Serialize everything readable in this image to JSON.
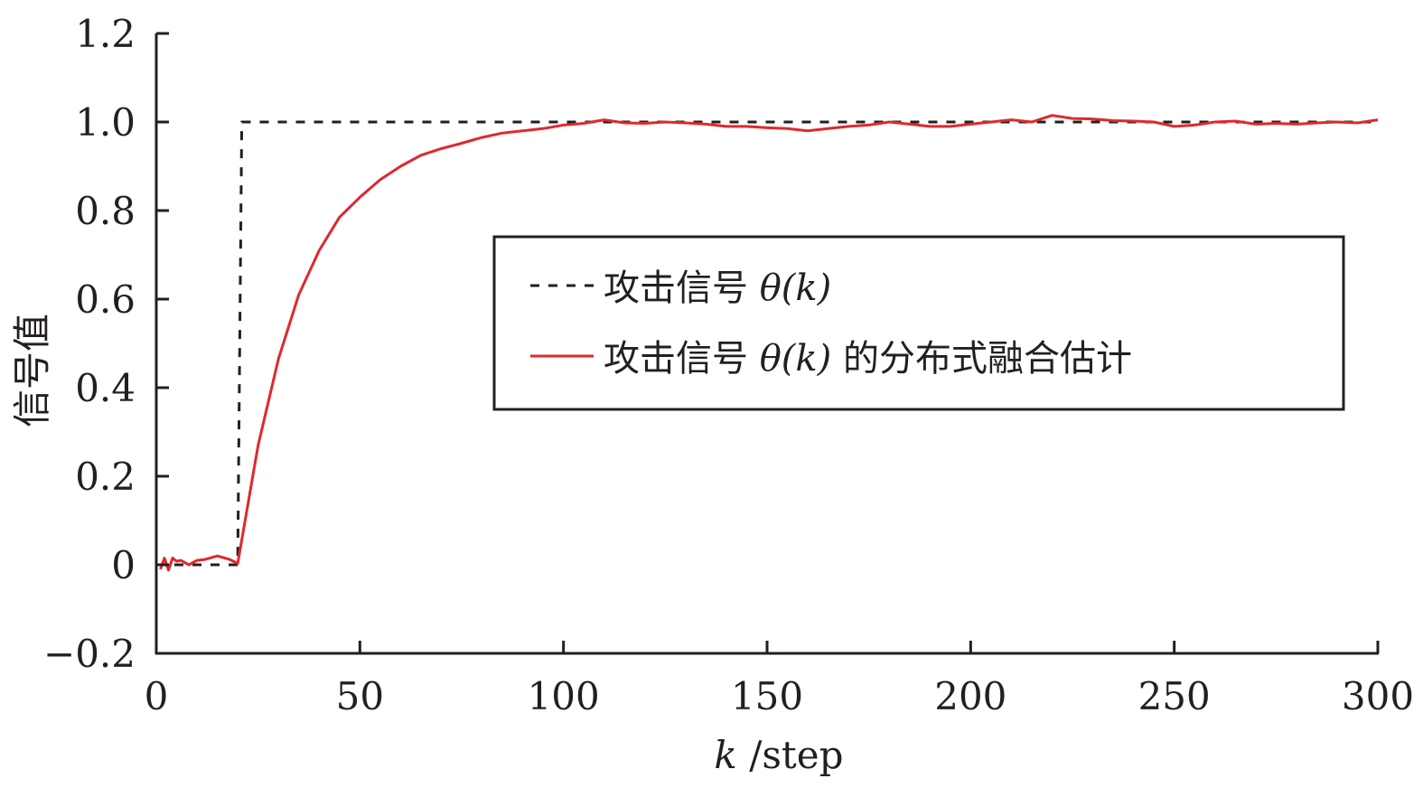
{
  "chart_data": {
    "type": "line",
    "title": "",
    "xlabel": "k /step",
    "xlabel_var": "k",
    "xlabel_unit": " /step",
    "ylabel": "信号值",
    "xlim": [
      0,
      300
    ],
    "ylim": [
      -0.2,
      1.2
    ],
    "xticks": [
      0,
      50,
      100,
      150,
      200,
      250,
      300
    ],
    "xtick_labels": [
      "0",
      "50",
      "100",
      "150",
      "200",
      "250",
      "300"
    ],
    "yticks": [
      -0.2,
      0,
      0.2,
      0.4,
      0.6,
      0.8,
      1.0,
      1.2
    ],
    "ytick_labels": [
      "−0.2",
      "0",
      "0.2",
      "0.4",
      "0.6",
      "0.8",
      "1.0",
      "1.2"
    ],
    "grid": false,
    "legend_position": "center-right",
    "series": [
      {
        "name": "攻击信号 θ(k)",
        "legend_prefix": "攻击信号 ",
        "legend_math": "θ(k)",
        "legend_suffix": "",
        "style": "dashed",
        "color": "#231f20",
        "x": [
          0,
          20,
          21,
          300
        ],
        "y": [
          0,
          0,
          1,
          1
        ]
      },
      {
        "name": "攻击信号 θ(k) 的分布式融合估计",
        "legend_prefix": "攻击信号 ",
        "legend_math": "θ(k)",
        "legend_suffix": " 的分布式融合估计",
        "style": "solid",
        "color": "#e0282e",
        "x": [
          1,
          2,
          3,
          4,
          5,
          6,
          8,
          10,
          12,
          15,
          18,
          20,
          25,
          30,
          35,
          40,
          45,
          50,
          55,
          60,
          65,
          70,
          75,
          80,
          85,
          90,
          95,
          100,
          105,
          110,
          115,
          120,
          125,
          130,
          135,
          140,
          145,
          150,
          155,
          160,
          165,
          170,
          175,
          180,
          185,
          190,
          195,
          200,
          205,
          210,
          215,
          220,
          225,
          230,
          235,
          240,
          245,
          250,
          255,
          260,
          265,
          270,
          275,
          280,
          285,
          290,
          295,
          300
        ],
        "y": [
          -0.01,
          0.015,
          -0.012,
          0.015,
          0.008,
          0.01,
          0.0,
          0.01,
          0.012,
          0.02,
          0.012,
          0.003,
          0.27,
          0.465,
          0.61,
          0.71,
          0.785,
          0.83,
          0.87,
          0.9,
          0.925,
          0.94,
          0.952,
          0.965,
          0.975,
          0.98,
          0.985,
          0.993,
          0.997,
          1.005,
          0.998,
          0.997,
          1.0,
          0.998,
          0.995,
          0.99,
          0.99,
          0.987,
          0.985,
          0.98,
          0.985,
          0.99,
          0.993,
          1.0,
          0.995,
          0.99,
          0.99,
          0.995,
          1.0,
          1.005,
          1.0,
          1.015,
          1.008,
          1.007,
          1.003,
          1.002,
          1.0,
          0.99,
          0.993,
          1.0,
          1.002,
          0.995,
          0.997,
          0.995,
          0.998,
          1.0,
          0.998,
          1.005
        ]
      }
    ]
  }
}
